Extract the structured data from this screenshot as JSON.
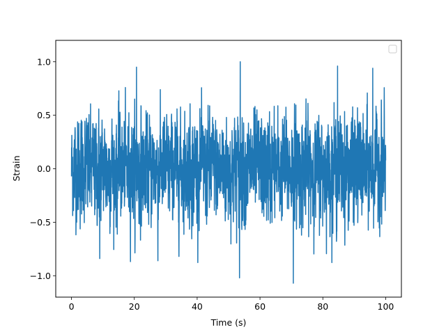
{
  "chart_data": {
    "type": "line",
    "title": "",
    "xlabel": "Time (s)",
    "ylabel": "Strain",
    "xlim": [
      -5,
      105
    ],
    "ylim": [
      -1.2,
      1.2
    ],
    "xticks": [
      0,
      20,
      40,
      60,
      80,
      100
    ],
    "yticks": [
      -1.0,
      -0.5,
      0.0,
      0.5,
      1.0
    ],
    "xtick_labels": [
      "0",
      "20",
      "40",
      "60",
      "80",
      "100"
    ],
    "ytick_labels": [
      "−1.0",
      "−0.5",
      "0.0",
      "0.5",
      "1.0"
    ],
    "grid": false,
    "legend": {
      "placement": "upper right",
      "entries": []
    },
    "series": [
      {
        "color": "#1f77b4",
        "x_range": [
          0,
          100
        ],
        "description_stats": {
          "min": -1.07,
          "max": 1.0,
          "mean": 0.0
        },
        "peaks": [
          {
            "x": 53.7,
            "y": 1.0
          },
          {
            "x": 70.6,
            "y": -1.07
          },
          {
            "x": 53.5,
            "y": -1.02
          },
          {
            "x": 20.7,
            "y": 0.95
          },
          {
            "x": 84.7,
            "y": 0.96
          },
          {
            "x": 9.0,
            "y": -0.84
          },
          {
            "x": 27.5,
            "y": -0.86
          },
          {
            "x": 95.9,
            "y": 0.94
          }
        ]
      }
    ]
  }
}
